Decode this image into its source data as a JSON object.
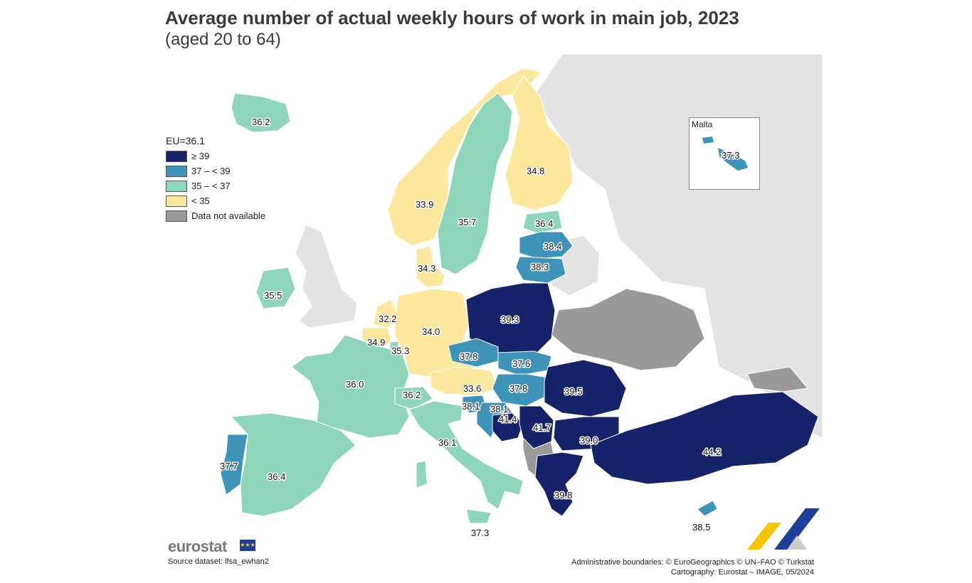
{
  "header": {
    "title": "Average number of actual weekly hours of work in main job, 2023",
    "subtitle": "(aged 20 to 64)"
  },
  "legend": {
    "eu_label": "EU=36.1",
    "classes": [
      {
        "label": "≥ 39",
        "color": "#16236b"
      },
      {
        "label": "37 – < 39",
        "color": "#3d93b8"
      },
      {
        "label": "35 – < 37",
        "color": "#8ed6b9"
      },
      {
        "label": "< 35",
        "color": "#fbe89c"
      },
      {
        "label": "Data not available",
        "color": "#999999"
      }
    ]
  },
  "inset": {
    "title": "Malta",
    "value": "37.3"
  },
  "colors": {
    "sea": "#ffffff",
    "non_covered_land": "#e3e3e3",
    "border": "#ffffff",
    "label_text": "#111111"
  },
  "regions": {
    "iceland": "36.2",
    "norway": "33.9",
    "sweden": "35.7",
    "finland": "34.8",
    "estonia": "36.4",
    "latvia": "38.4",
    "lithuania": "38.3",
    "denmark": "34.3",
    "ireland": "35.5",
    "netherlands": "32.2",
    "belgium": "34.9",
    "luxembourg": "35.3",
    "germany": "34.0",
    "poland": "39.3",
    "czechia": "37.8",
    "slovakia": "37.6",
    "austria": "33.6",
    "hungary": "37.8",
    "romania": "39.5",
    "france": "36.0",
    "switzerland": "36.2",
    "slovenia": "38.1",
    "croatia": "38.1",
    "bosnia": "41.4",
    "serbia": "41.7",
    "bulgaria": "39.0",
    "turkey": "44.2",
    "italy": "36.1",
    "portugal": "37.7",
    "spain": "36.4",
    "greece": "39.8",
    "cyprus": "38.5",
    "sicily_label": "37.3"
  },
  "footer": {
    "brand": "eurostat",
    "source": "Source dataset: lfsa_ewhan2",
    "boundaries": "Administrative boundaries: © EuroGeographics © UN–FAO © Turkstat",
    "cartography": "Cartography: Eurostat – IMAGE, 05/2024"
  }
}
